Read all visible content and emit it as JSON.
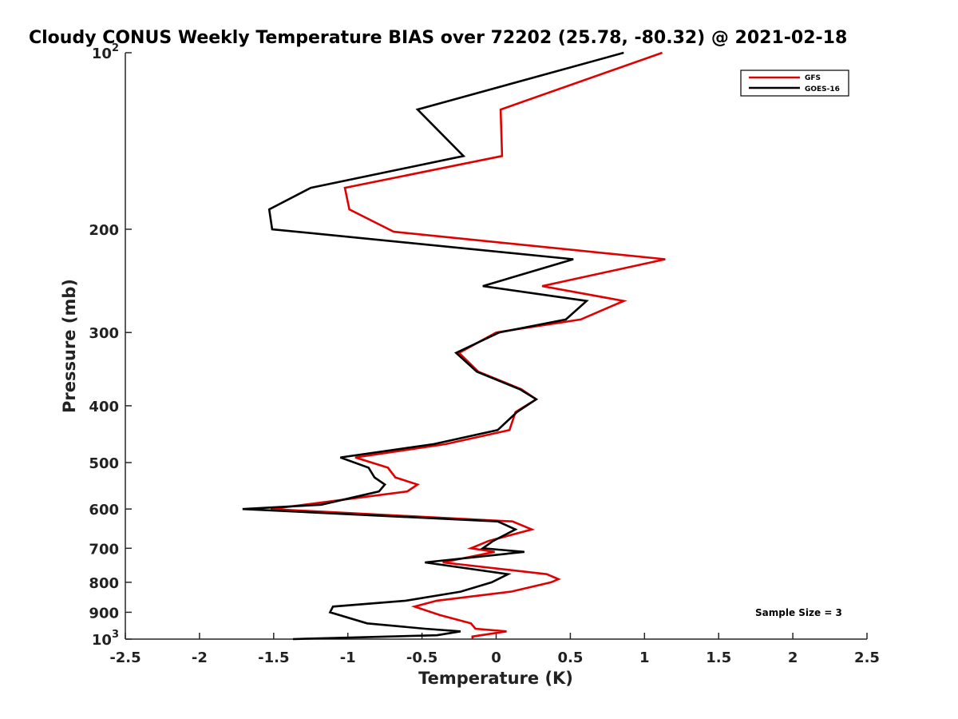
{
  "chart_data": {
    "type": "line",
    "title": "Cloudy CONUS Weekly Temperature BIAS over 72202 (25.78, -80.32) @ 2021-02-18",
    "xlabel": "Temperature (K)",
    "ylabel": "Pressure (mb)",
    "xlim": [
      -2.5,
      2.5
    ],
    "ylim": [
      100,
      1000
    ],
    "yscale": "log",
    "yreversed": true,
    "x_ticks": [
      "-2.5",
      "-2",
      "-1.5",
      "-1",
      "-0.5",
      "0",
      "0.5",
      "1",
      "1.5",
      "2",
      "2.5"
    ],
    "y_ticks": [
      {
        "value": 100,
        "base": "10",
        "exp": "2"
      },
      {
        "value": 200,
        "label": "200"
      },
      {
        "value": 300,
        "label": "300"
      },
      {
        "value": 400,
        "label": "400"
      },
      {
        "value": 500,
        "label": "500"
      },
      {
        "value": 600,
        "label": "600"
      },
      {
        "value": 700,
        "label": "700"
      },
      {
        "value": 800,
        "label": "800"
      },
      {
        "value": 900,
        "label": "900"
      },
      {
        "value": 1000,
        "base": "10",
        "exp": "3"
      }
    ],
    "legend_position": "top-right",
    "annotation": "Sample Size = 3",
    "series": [
      {
        "name": "GFS",
        "color": "#e00000",
        "points": [
          [
            1.12,
            100
          ],
          [
            0.03,
            125
          ],
          [
            0.04,
            150
          ],
          [
            -1.02,
            170
          ],
          [
            -0.99,
            185
          ],
          [
            -0.69,
            202
          ],
          [
            1.14,
            225
          ],
          [
            0.31,
            250
          ],
          [
            0.86,
            265
          ],
          [
            0.57,
            285
          ],
          [
            0.0,
            300
          ],
          [
            -0.25,
            325
          ],
          [
            -0.12,
            350
          ],
          [
            0.17,
            375
          ],
          [
            0.27,
            390
          ],
          [
            0.13,
            410
          ],
          [
            0.09,
            440
          ],
          [
            -0.34,
            465
          ],
          [
            -0.95,
            490
          ],
          [
            -0.73,
            510
          ],
          [
            -0.68,
            530
          ],
          [
            -0.53,
            545
          ],
          [
            -0.6,
            560
          ],
          [
            -1.52,
            600
          ],
          [
            0.11,
            630
          ],
          [
            0.24,
            650
          ],
          [
            -0.05,
            680
          ],
          [
            -0.17,
            700
          ],
          [
            -0.01,
            710
          ],
          [
            -0.36,
            740
          ],
          [
            0.34,
            775
          ],
          [
            0.42,
            790
          ],
          [
            0.37,
            800
          ],
          [
            0.1,
            830
          ],
          [
            -0.4,
            860
          ],
          [
            -0.55,
            880
          ],
          [
            -0.38,
            910
          ],
          [
            -0.17,
            940
          ],
          [
            -0.14,
            960
          ],
          [
            0.07,
            970
          ],
          [
            -0.16,
            990
          ],
          [
            -0.16,
            1000
          ]
        ]
      },
      {
        "name": "GOES-16",
        "color": "#000000",
        "points": [
          [
            0.86,
            100
          ],
          [
            -0.53,
            125
          ],
          [
            -0.22,
            150
          ],
          [
            -1.25,
            170
          ],
          [
            -1.53,
            185
          ],
          [
            -1.51,
            200
          ],
          [
            0.52,
            225
          ],
          [
            -0.09,
            250
          ],
          [
            0.61,
            265
          ],
          [
            0.47,
            285
          ],
          [
            0.02,
            300
          ],
          [
            -0.27,
            325
          ],
          [
            -0.13,
            350
          ],
          [
            0.16,
            375
          ],
          [
            0.27,
            390
          ],
          [
            0.14,
            410
          ],
          [
            0.01,
            440
          ],
          [
            -0.42,
            465
          ],
          [
            -1.05,
            490
          ],
          [
            -0.86,
            510
          ],
          [
            -0.82,
            530
          ],
          [
            -0.75,
            545
          ],
          [
            -0.79,
            560
          ],
          [
            -1.18,
            590
          ],
          [
            -1.71,
            600
          ],
          [
            0.01,
            630
          ],
          [
            0.13,
            650
          ],
          [
            -0.02,
            680
          ],
          [
            -0.09,
            700
          ],
          [
            0.19,
            710
          ],
          [
            -0.48,
            740
          ],
          [
            0.08,
            775
          ],
          [
            -0.03,
            800
          ],
          [
            -0.24,
            830
          ],
          [
            -0.61,
            860
          ],
          [
            -1.1,
            880
          ],
          [
            -1.12,
            900
          ],
          [
            -0.87,
            940
          ],
          [
            -0.48,
            960
          ],
          [
            -0.24,
            970
          ],
          [
            -0.4,
            985
          ],
          [
            -1.06,
            995
          ],
          [
            -1.37,
            1000
          ]
        ]
      }
    ]
  }
}
